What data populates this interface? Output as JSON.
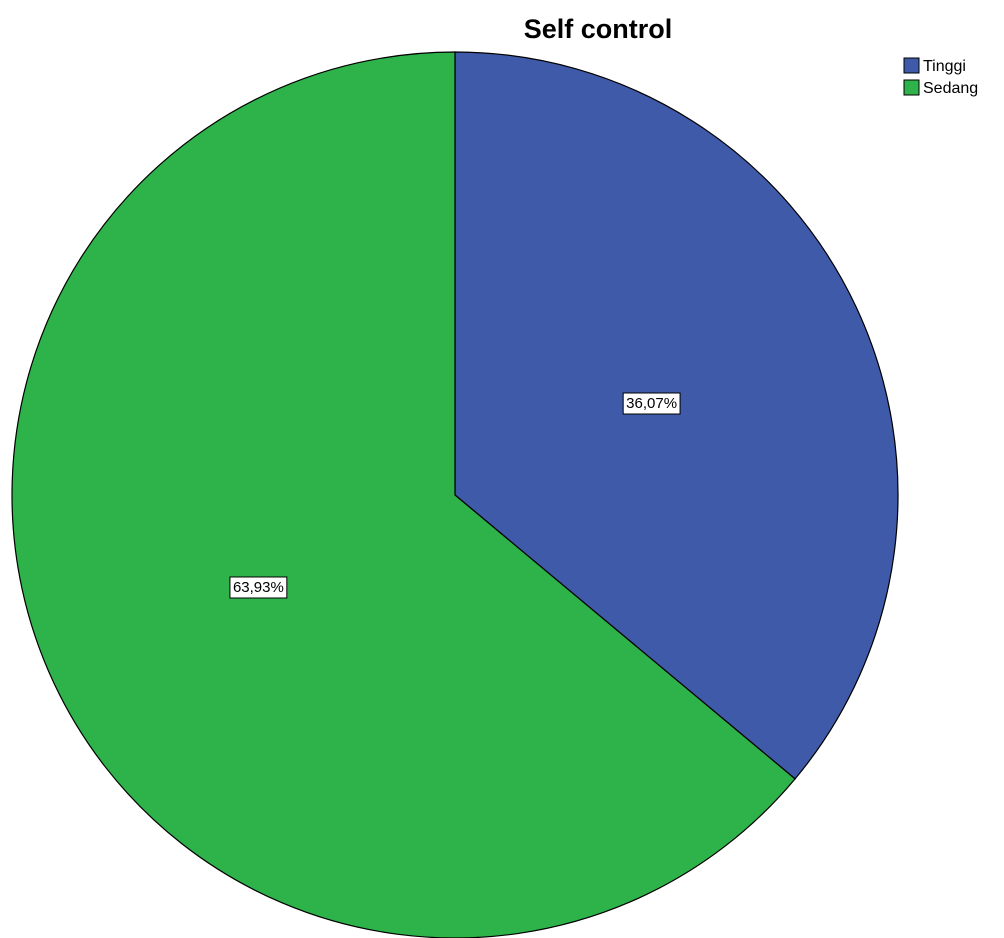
{
  "chart_data": {
    "type": "pie",
    "title": "Self control",
    "start_angle_deg": 0,
    "direction": "clockwise",
    "legend_position": "top-right",
    "slices": [
      {
        "name": "Tinggi",
        "value": 36.07,
        "label": "36,07%",
        "color": "#3F5AA8"
      },
      {
        "name": "Sedang",
        "value": 63.93,
        "label": "63,93%",
        "color": "#2EB34A"
      }
    ]
  }
}
